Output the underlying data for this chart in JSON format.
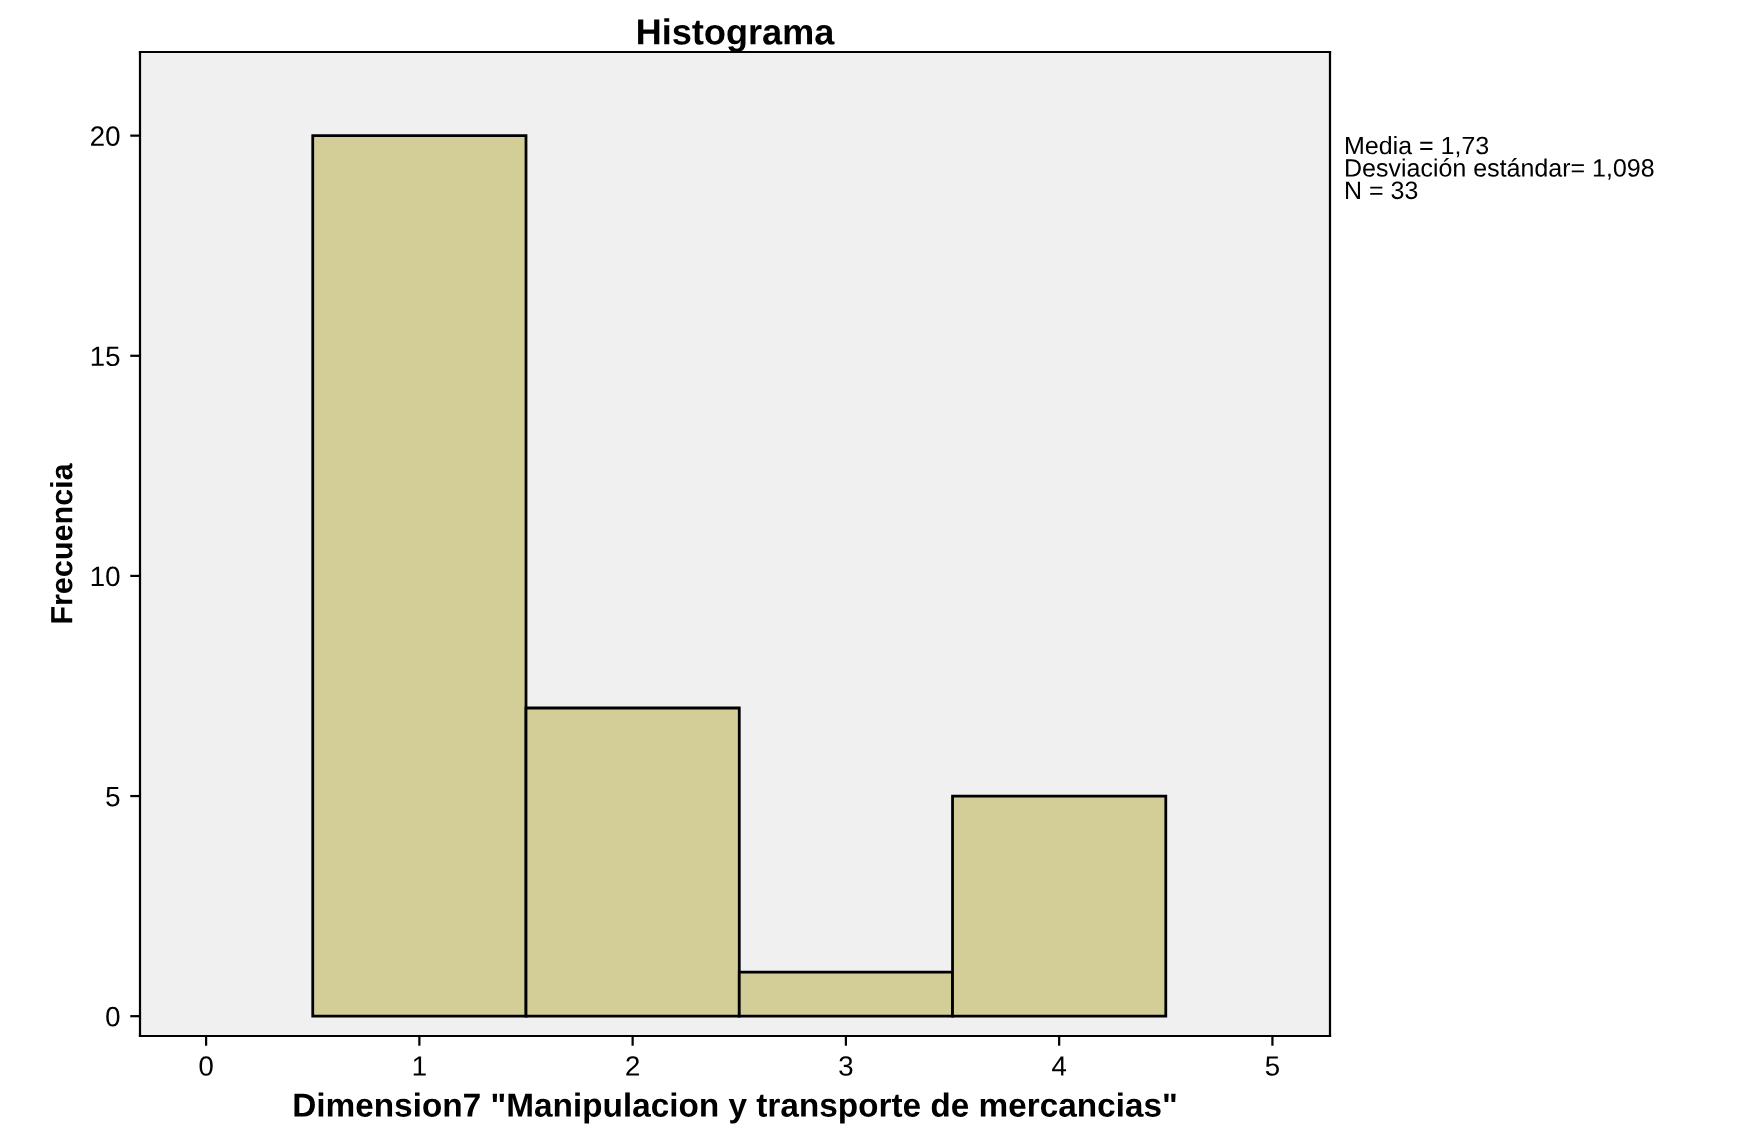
{
  "chart_data": {
    "type": "histogram",
    "title": "Histograma",
    "xlabel": "Dimension7 \"Manipulacion y transporte de mercancias\"",
    "ylabel": "Frecuencia",
    "bins": [
      0.5,
      1.5,
      2.5,
      3.5,
      4.5
    ],
    "values": [
      20,
      7,
      1,
      5
    ],
    "color": "#d3ce98",
    "xlim": [
      -0.31,
      5.27
    ],
    "xticks": [
      0,
      1,
      2,
      3,
      4,
      5
    ],
    "ylim": [
      -0.45,
      21.9
    ],
    "yticks": [
      0,
      5,
      10,
      15,
      20
    ],
    "grid": false,
    "annotations": [
      "Media = 1,73",
      "Desviación estándar= 1,098",
      "N = 33"
    ]
  }
}
